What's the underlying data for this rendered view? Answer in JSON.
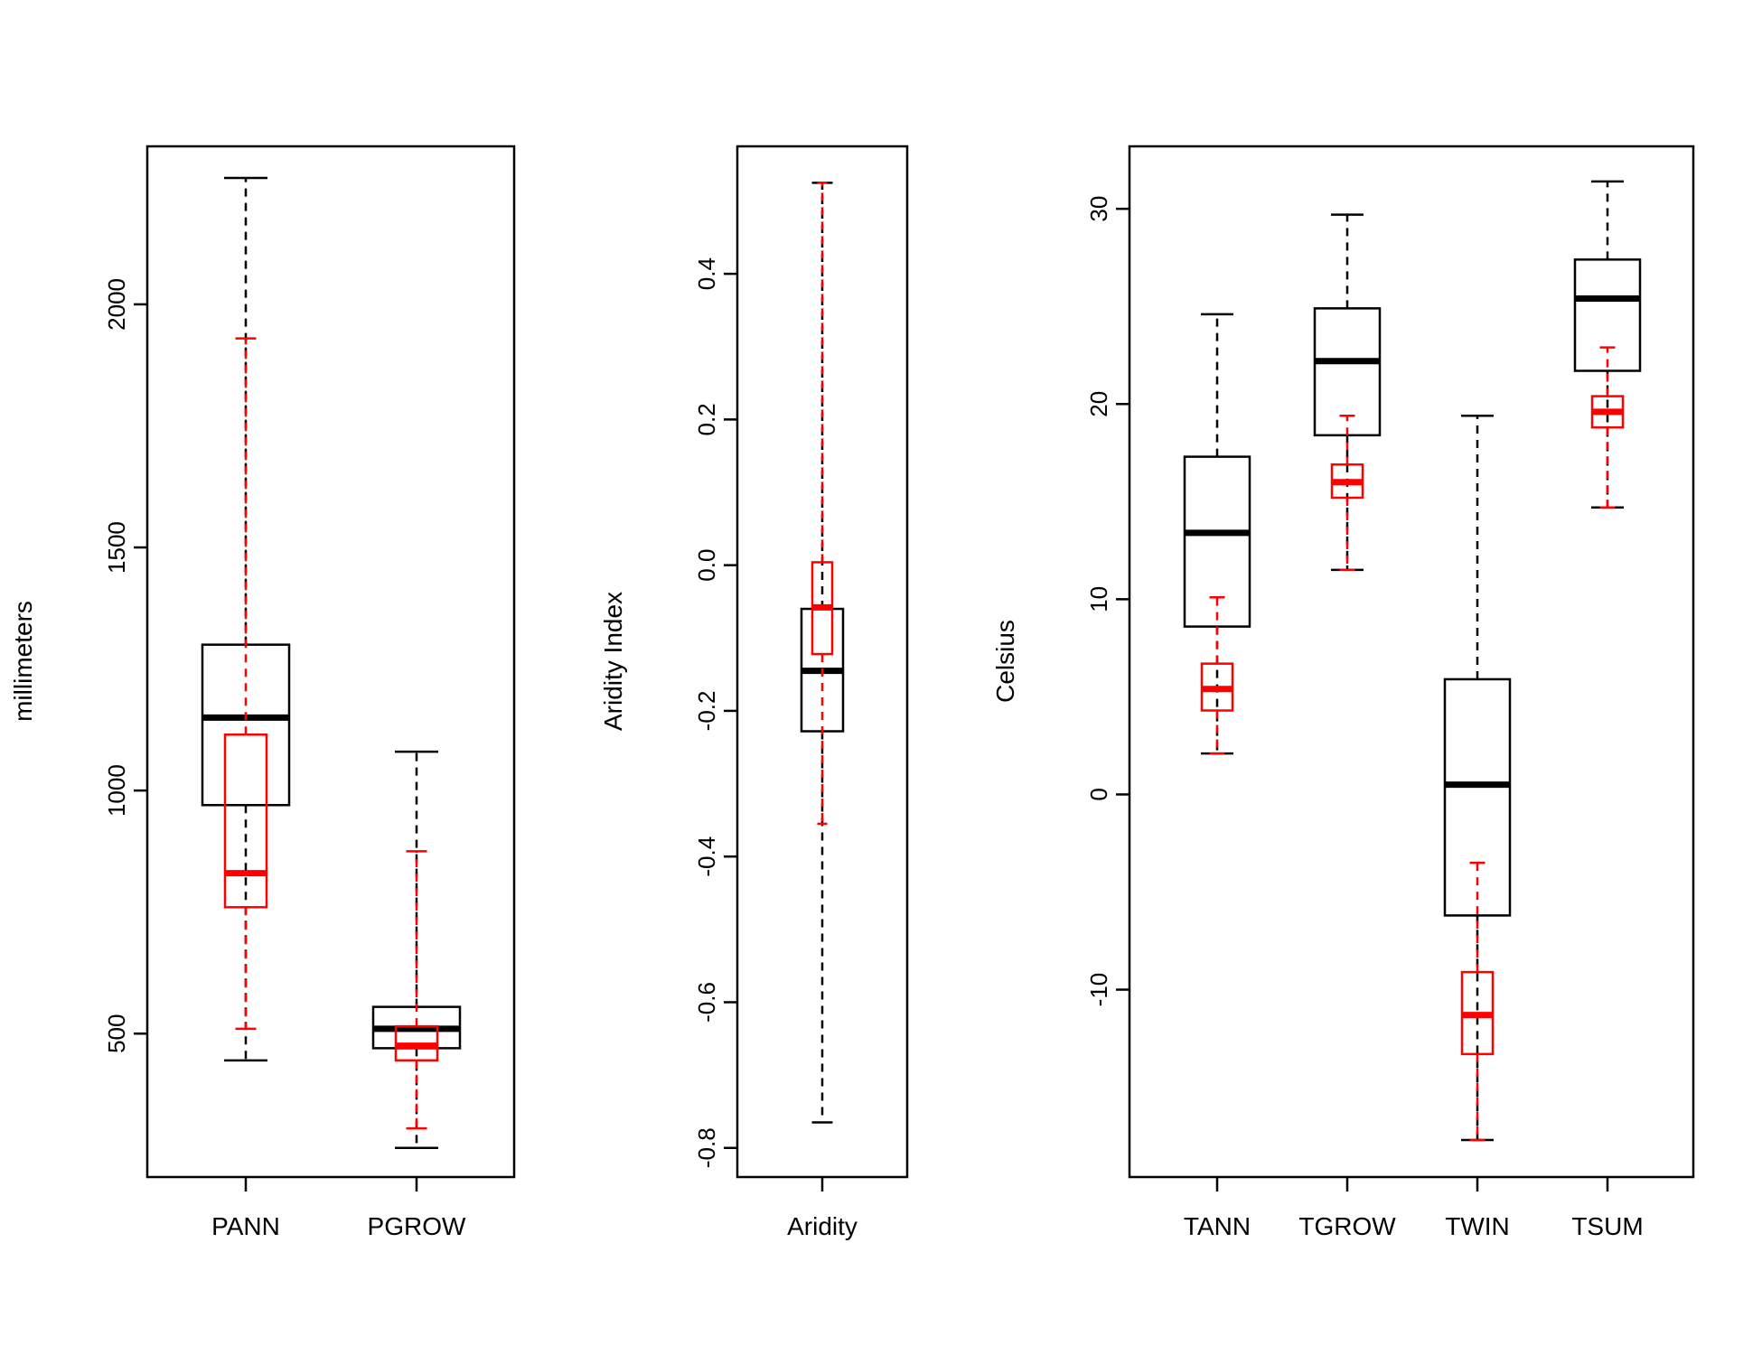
{
  "chart_data": [
    {
      "type": "boxplot",
      "ylabel": "millimeters",
      "ylim": [
        205,
        2325
      ],
      "yticks": [
        500,
        1000,
        1500,
        2000
      ],
      "categories": [
        "PANN",
        "PGROW"
      ],
      "series": [
        {
          "name": "black",
          "color": "#000000",
          "boxes": [
            {
              "min": 445,
              "q1": 970,
              "median": 1150,
              "q3": 1300,
              "max": 2260
            },
            {
              "min": 265,
              "q1": 470,
              "median": 510,
              "q3": 555,
              "max": 1080
            }
          ]
        },
        {
          "name": "red",
          "color": "#ff0000",
          "boxes": [
            {
              "min": 510,
              "q1": 760,
              "median": 830,
              "q3": 1115,
              "max": 1930
            },
            {
              "min": 305,
              "q1": 445,
              "median": 475,
              "q3": 515,
              "max": 875
            }
          ]
        }
      ]
    },
    {
      "type": "boxplot",
      "ylabel": "Aridity Index",
      "ylim": [
        -0.84,
        0.575
      ],
      "yticks": [
        -0.8,
        -0.6,
        -0.4,
        -0.2,
        0.0,
        0.2,
        0.4
      ],
      "ytick_labels": [
        "-0.8",
        "-0.6",
        "-0.4",
        "-0.2",
        "0.0",
        "0.2",
        "0.4"
      ],
      "categories": [
        "Aridity"
      ],
      "series": [
        {
          "name": "black",
          "color": "#000000",
          "boxes": [
            {
              "min": -0.765,
              "q1": -0.228,
              "median": -0.145,
              "q3": -0.06,
              "max": 0.525
            }
          ]
        },
        {
          "name": "red",
          "color": "#ff0000",
          "boxes": [
            {
              "min": -0.355,
              "q1": -0.122,
              "median": -0.058,
              "q3": 0.004,
              "max": 0.525
            }
          ]
        }
      ]
    },
    {
      "type": "boxplot",
      "ylabel": "Celsius",
      "ylim": [
        -19.6,
        33.2
      ],
      "yticks": [
        -10,
        0,
        10,
        20,
        30
      ],
      "categories": [
        "TANN",
        "TGROW",
        "TWIN",
        "TSUM"
      ],
      "series": [
        {
          "name": "black",
          "color": "#000000",
          "boxes": [
            {
              "min": 2.1,
              "q1": 8.6,
              "median": 13.4,
              "q3": 17.3,
              "max": 24.6
            },
            {
              "min": 11.5,
              "q1": 18.4,
              "median": 22.2,
              "q3": 24.9,
              "max": 29.7
            },
            {
              "min": -17.7,
              "q1": -6.2,
              "median": 0.5,
              "q3": 5.9,
              "max": 19.4
            },
            {
              "min": 14.7,
              "q1": 21.7,
              "median": 25.4,
              "q3": 27.4,
              "max": 31.4
            }
          ]
        },
        {
          "name": "red",
          "color": "#ff0000",
          "boxes": [
            {
              "min": 2.1,
              "q1": 4.3,
              "median": 5.4,
              "q3": 6.7,
              "max": 10.1
            },
            {
              "min": 11.5,
              "q1": 15.2,
              "median": 16.0,
              "q3": 16.9,
              "max": 19.4
            },
            {
              "min": -17.7,
              "q1": -13.3,
              "median": -11.3,
              "q3": -9.1,
              "max": -3.5
            },
            {
              "min": 14.7,
              "q1": 18.8,
              "median": 19.6,
              "q3": 20.4,
              "max": 22.9
            }
          ]
        }
      ]
    }
  ]
}
